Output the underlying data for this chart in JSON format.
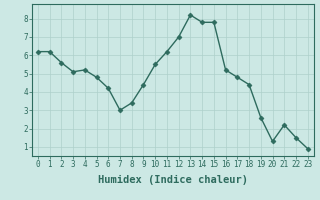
{
  "x": [
    0,
    1,
    2,
    3,
    4,
    5,
    6,
    7,
    8,
    9,
    10,
    11,
    12,
    13,
    14,
    15,
    16,
    17,
    18,
    19,
    20,
    21,
    22,
    23
  ],
  "y": [
    6.2,
    6.2,
    5.6,
    5.1,
    5.2,
    4.8,
    4.2,
    3.0,
    3.4,
    4.4,
    5.5,
    6.2,
    7.0,
    8.2,
    7.8,
    7.8,
    5.2,
    4.8,
    4.4,
    2.6,
    1.3,
    2.2,
    1.5,
    0.9
  ],
  "line_color": "#2e6b5e",
  "marker": "D",
  "marker_size": 2.5,
  "bg_color": "#cce8e4",
  "grid_color": "#aed0cb",
  "xlabel": "Humidex (Indice chaleur)",
  "xlim": [
    -0.5,
    23.5
  ],
  "ylim": [
    0.5,
    8.8
  ],
  "yticks": [
    1,
    2,
    3,
    4,
    5,
    6,
    7,
    8
  ],
  "xtick_labels": [
    "0",
    "1",
    "2",
    "3",
    "4",
    "5",
    "6",
    "7",
    "8",
    "9",
    "10",
    "11",
    "12",
    "13",
    "14",
    "15",
    "16",
    "17",
    "18",
    "19",
    "20",
    "21",
    "22",
    "23"
  ],
  "tick_fontsize": 5.5,
  "xlabel_fontsize": 7.5,
  "linewidth": 1.0
}
